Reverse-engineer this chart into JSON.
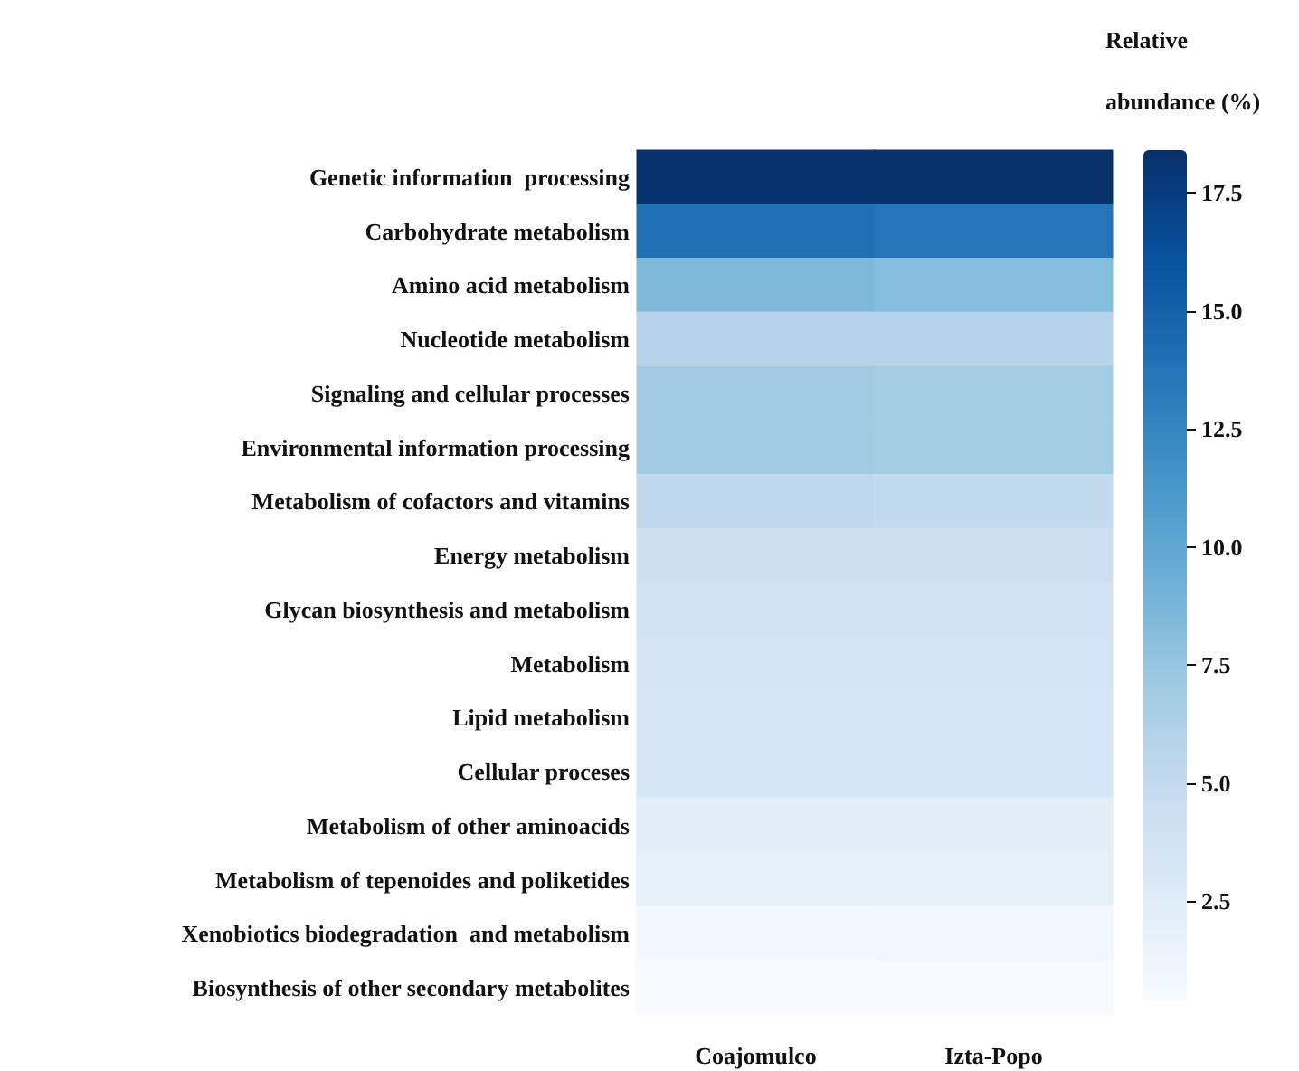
{
  "chart_data": {
    "type": "heatmap",
    "clabel": "Relative abundance (%)",
    "categories": [
      "Coajomulco",
      "Izta-Popo"
    ],
    "y_categories": [
      "Genetic information  processing",
      "Carbohydrate metabolism",
      "Amino acid metabolism",
      "Nucleotide metabolism",
      "Signaling and cellular processes",
      "Environmental information processing",
      "Metabolism of cofactors and vitamins",
      "Energy metabolism",
      "Glycan biosynthesis and metabolism",
      "Metabolism",
      "Lipid metabolism",
      "Cellular proceses",
      "Metabolism of other aminoacids",
      "Metabolism of tepenoides and poliketides",
      "Xenobiotics biodegradation  and metabolism",
      "Biosynthesis of other secondary metabolites"
    ],
    "cells": [
      [
        18.3,
        18.4
      ],
      [
        14.0,
        13.6
      ],
      [
        8.5,
        8.2
      ],
      [
        5.8,
        5.8
      ],
      [
        7.0,
        6.8
      ],
      [
        7.0,
        6.8
      ],
      [
        5.3,
        5.0
      ],
      [
        4.3,
        4.3
      ],
      [
        3.8,
        3.8
      ],
      [
        3.5,
        3.5
      ],
      [
        3.3,
        3.3
      ],
      [
        3.2,
        3.2
      ],
      [
        2.2,
        2.2
      ],
      [
        2.0,
        2.0
      ],
      [
        0.8,
        0.9
      ],
      [
        0.5,
        0.5
      ]
    ],
    "colors": [
      "#f7fbff",
      "#deebf7",
      "#c6dbef",
      "#9ecae1",
      "#6baed6",
      "#4292c6",
      "#2171b5",
      "#08519c",
      "#08306b"
    ],
    "clim": [
      0.4,
      18.4
    ],
    "cticks": [
      2.5,
      {
        "value": 5,
        "label": "5.0"
      },
      7.5,
      {
        "value": 10,
        "label": "10.0"
      },
      12.5,
      {
        "value": 15,
        "label": "15.0"
      },
      17.5
    ]
  }
}
